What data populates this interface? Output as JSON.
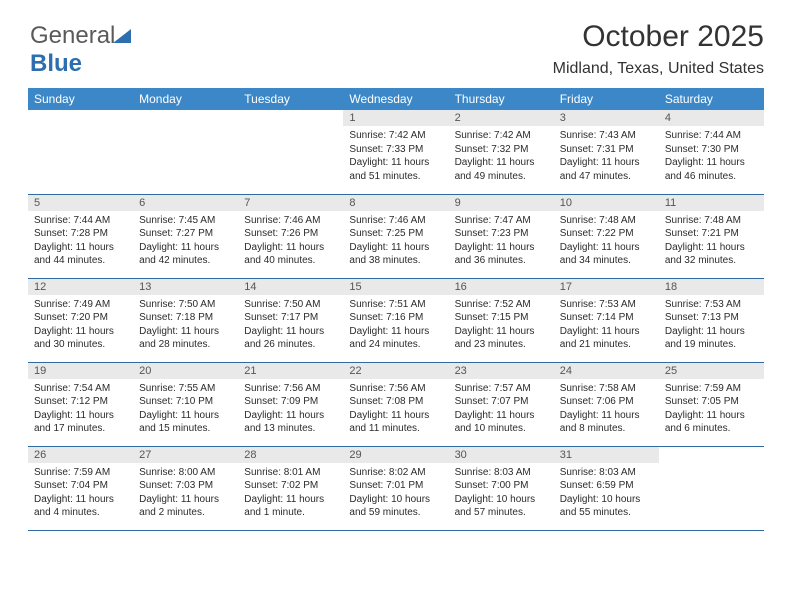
{
  "brand": {
    "part1": "General",
    "part2": "Blue"
  },
  "title": "October 2025",
  "subtitle": "Midland, Texas, United States",
  "colors": {
    "header_bg": "#3b87c8",
    "header_text": "#ffffff",
    "daynum_bg": "#e9e9ea",
    "row_border": "#2f6aa0",
    "body_text": "#2b2b2b",
    "logo_gray": "#5a5a5a",
    "logo_blue": "#2d6fae",
    "page_bg": "#ffffff"
  },
  "typography": {
    "title_fontsize": 30,
    "subtitle_fontsize": 16,
    "header_fontsize": 12,
    "daynum_fontsize": 11,
    "info_fontsize": 10,
    "logo_fontsize": 24
  },
  "weekdays": [
    "Sunday",
    "Monday",
    "Tuesday",
    "Wednesday",
    "Thursday",
    "Friday",
    "Saturday"
  ],
  "first_weekday_index": 3,
  "days": [
    {
      "n": 1,
      "sunrise": "7:42 AM",
      "sunset": "7:33 PM",
      "daylight": "11 hours and 51 minutes."
    },
    {
      "n": 2,
      "sunrise": "7:42 AM",
      "sunset": "7:32 PM",
      "daylight": "11 hours and 49 minutes."
    },
    {
      "n": 3,
      "sunrise": "7:43 AM",
      "sunset": "7:31 PM",
      "daylight": "11 hours and 47 minutes."
    },
    {
      "n": 4,
      "sunrise": "7:44 AM",
      "sunset": "7:30 PM",
      "daylight": "11 hours and 46 minutes."
    },
    {
      "n": 5,
      "sunrise": "7:44 AM",
      "sunset": "7:28 PM",
      "daylight": "11 hours and 44 minutes."
    },
    {
      "n": 6,
      "sunrise": "7:45 AM",
      "sunset": "7:27 PM",
      "daylight": "11 hours and 42 minutes."
    },
    {
      "n": 7,
      "sunrise": "7:46 AM",
      "sunset": "7:26 PM",
      "daylight": "11 hours and 40 minutes."
    },
    {
      "n": 8,
      "sunrise": "7:46 AM",
      "sunset": "7:25 PM",
      "daylight": "11 hours and 38 minutes."
    },
    {
      "n": 9,
      "sunrise": "7:47 AM",
      "sunset": "7:23 PM",
      "daylight": "11 hours and 36 minutes."
    },
    {
      "n": 10,
      "sunrise": "7:48 AM",
      "sunset": "7:22 PM",
      "daylight": "11 hours and 34 minutes."
    },
    {
      "n": 11,
      "sunrise": "7:48 AM",
      "sunset": "7:21 PM",
      "daylight": "11 hours and 32 minutes."
    },
    {
      "n": 12,
      "sunrise": "7:49 AM",
      "sunset": "7:20 PM",
      "daylight": "11 hours and 30 minutes."
    },
    {
      "n": 13,
      "sunrise": "7:50 AM",
      "sunset": "7:18 PM",
      "daylight": "11 hours and 28 minutes."
    },
    {
      "n": 14,
      "sunrise": "7:50 AM",
      "sunset": "7:17 PM",
      "daylight": "11 hours and 26 minutes."
    },
    {
      "n": 15,
      "sunrise": "7:51 AM",
      "sunset": "7:16 PM",
      "daylight": "11 hours and 24 minutes."
    },
    {
      "n": 16,
      "sunrise": "7:52 AM",
      "sunset": "7:15 PM",
      "daylight": "11 hours and 23 minutes."
    },
    {
      "n": 17,
      "sunrise": "7:53 AM",
      "sunset": "7:14 PM",
      "daylight": "11 hours and 21 minutes."
    },
    {
      "n": 18,
      "sunrise": "7:53 AM",
      "sunset": "7:13 PM",
      "daylight": "11 hours and 19 minutes."
    },
    {
      "n": 19,
      "sunrise": "7:54 AM",
      "sunset": "7:12 PM",
      "daylight": "11 hours and 17 minutes."
    },
    {
      "n": 20,
      "sunrise": "7:55 AM",
      "sunset": "7:10 PM",
      "daylight": "11 hours and 15 minutes."
    },
    {
      "n": 21,
      "sunrise": "7:56 AM",
      "sunset": "7:09 PM",
      "daylight": "11 hours and 13 minutes."
    },
    {
      "n": 22,
      "sunrise": "7:56 AM",
      "sunset": "7:08 PM",
      "daylight": "11 hours and 11 minutes."
    },
    {
      "n": 23,
      "sunrise": "7:57 AM",
      "sunset": "7:07 PM",
      "daylight": "11 hours and 10 minutes."
    },
    {
      "n": 24,
      "sunrise": "7:58 AM",
      "sunset": "7:06 PM",
      "daylight": "11 hours and 8 minutes."
    },
    {
      "n": 25,
      "sunrise": "7:59 AM",
      "sunset": "7:05 PM",
      "daylight": "11 hours and 6 minutes."
    },
    {
      "n": 26,
      "sunrise": "7:59 AM",
      "sunset": "7:04 PM",
      "daylight": "11 hours and 4 minutes."
    },
    {
      "n": 27,
      "sunrise": "8:00 AM",
      "sunset": "7:03 PM",
      "daylight": "11 hours and 2 minutes."
    },
    {
      "n": 28,
      "sunrise": "8:01 AM",
      "sunset": "7:02 PM",
      "daylight": "11 hours and 1 minute."
    },
    {
      "n": 29,
      "sunrise": "8:02 AM",
      "sunset": "7:01 PM",
      "daylight": "10 hours and 59 minutes."
    },
    {
      "n": 30,
      "sunrise": "8:03 AM",
      "sunset": "7:00 PM",
      "daylight": "10 hours and 57 minutes."
    },
    {
      "n": 31,
      "sunrise": "8:03 AM",
      "sunset": "6:59 PM",
      "daylight": "10 hours and 55 minutes."
    }
  ],
  "labels": {
    "sunrise": "Sunrise:",
    "sunset": "Sunset:",
    "daylight": "Daylight:"
  }
}
